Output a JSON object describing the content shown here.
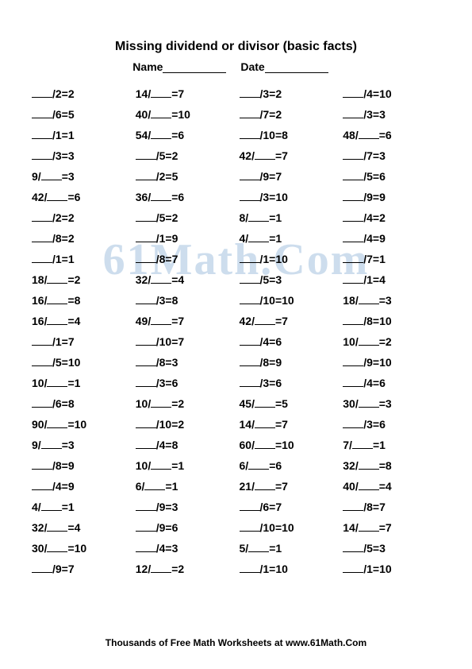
{
  "title": "Missing dividend or divisor (basic facts)",
  "name_label": "Name",
  "date_label": "Date",
  "watermark": "61Math.Com",
  "footer": "Thousands of Free Math Worksheets at www.61Math.Com",
  "problems": [
    {
      "a": "",
      "b": "2",
      "r": "2"
    },
    {
      "a": "14",
      "b": "",
      "r": "7"
    },
    {
      "a": "",
      "b": "3",
      "r": "2"
    },
    {
      "a": "",
      "b": "4",
      "r": "10"
    },
    {
      "a": "",
      "b": "6",
      "r": "5"
    },
    {
      "a": "40",
      "b": "",
      "r": "10"
    },
    {
      "a": "",
      "b": "7",
      "r": "2"
    },
    {
      "a": "",
      "b": "3",
      "r": "3"
    },
    {
      "a": "",
      "b": "1",
      "r": "1"
    },
    {
      "a": "54",
      "b": "",
      "r": "6"
    },
    {
      "a": "",
      "b": "10",
      "r": "8"
    },
    {
      "a": "48",
      "b": "",
      "r": "6"
    },
    {
      "a": "",
      "b": "3",
      "r": "3"
    },
    {
      "a": "",
      "b": "5",
      "r": "2"
    },
    {
      "a": "42",
      "b": "",
      "r": "7"
    },
    {
      "a": "",
      "b": "7",
      "r": "3"
    },
    {
      "a": "9",
      "b": "",
      "r": "3"
    },
    {
      "a": "",
      "b": "2",
      "r": "5"
    },
    {
      "a": "",
      "b": "9",
      "r": "7"
    },
    {
      "a": "",
      "b": "5",
      "r": "6"
    },
    {
      "a": "42",
      "b": "",
      "r": "6"
    },
    {
      "a": "36",
      "b": "",
      "r": "6"
    },
    {
      "a": "",
      "b": "3",
      "r": "10"
    },
    {
      "a": "",
      "b": "9",
      "r": "9"
    },
    {
      "a": "",
      "b": "2",
      "r": "2"
    },
    {
      "a": "",
      "b": "5",
      "r": "2"
    },
    {
      "a": "8",
      "b": "",
      "r": "1"
    },
    {
      "a": "",
      "b": "4",
      "r": "2"
    },
    {
      "a": "",
      "b": "8",
      "r": "2"
    },
    {
      "a": "",
      "b": "1",
      "r": "9"
    },
    {
      "a": "4",
      "b": "",
      "r": "1"
    },
    {
      "a": "",
      "b": "4",
      "r": "9"
    },
    {
      "a": "",
      "b": "1",
      "r": "1"
    },
    {
      "a": "",
      "b": "8",
      "r": "7"
    },
    {
      "a": "",
      "b": "1",
      "r": "10"
    },
    {
      "a": "",
      "b": "7",
      "r": "1"
    },
    {
      "a": "18",
      "b": "",
      "r": "2"
    },
    {
      "a": "32",
      "b": "",
      "r": "4"
    },
    {
      "a": "",
      "b": "5",
      "r": "3"
    },
    {
      "a": "",
      "b": "1",
      "r": "4"
    },
    {
      "a": "16",
      "b": "",
      "r": "8"
    },
    {
      "a": "",
      "b": "3",
      "r": "8"
    },
    {
      "a": "",
      "b": "10",
      "r": "10"
    },
    {
      "a": "18",
      "b": "",
      "r": "3"
    },
    {
      "a": "16",
      "b": "",
      "r": "4"
    },
    {
      "a": "49",
      "b": "",
      "r": "7"
    },
    {
      "a": "42",
      "b": "",
      "r": "7"
    },
    {
      "a": "",
      "b": "8",
      "r": "10"
    },
    {
      "a": "",
      "b": "1",
      "r": "7"
    },
    {
      "a": "",
      "b": "10",
      "r": "7"
    },
    {
      "a": "",
      "b": "4",
      "r": "6"
    },
    {
      "a": "10",
      "b": "",
      "r": "2"
    },
    {
      "a": "",
      "b": "5",
      "r": "10"
    },
    {
      "a": "",
      "b": "8",
      "r": "3"
    },
    {
      "a": "",
      "b": "8",
      "r": "9"
    },
    {
      "a": "",
      "b": "9",
      "r": "10"
    },
    {
      "a": "10",
      "b": "",
      "r": "1"
    },
    {
      "a": "",
      "b": "3",
      "r": "6"
    },
    {
      "a": "",
      "b": "3",
      "r": "6"
    },
    {
      "a": "",
      "b": "4",
      "r": "6"
    },
    {
      "a": "",
      "b": "6",
      "r": "8"
    },
    {
      "a": "10",
      "b": "",
      "r": "2"
    },
    {
      "a": "45",
      "b": "",
      "r": "5"
    },
    {
      "a": "30",
      "b": "",
      "r": "3"
    },
    {
      "a": "90",
      "b": "",
      "r": "10"
    },
    {
      "a": "",
      "b": "10",
      "r": "2"
    },
    {
      "a": "14",
      "b": "",
      "r": "7"
    },
    {
      "a": "",
      "b": "3",
      "r": "6"
    },
    {
      "a": "9",
      "b": "",
      "r": "3"
    },
    {
      "a": "",
      "b": "4",
      "r": "8"
    },
    {
      "a": "60",
      "b": "",
      "r": "10"
    },
    {
      "a": "7",
      "b": "",
      "r": "1"
    },
    {
      "a": "",
      "b": "8",
      "r": "9"
    },
    {
      "a": "10",
      "b": "",
      "r": "1"
    },
    {
      "a": "6",
      "b": "",
      "r": "6"
    },
    {
      "a": "32",
      "b": "",
      "r": "8"
    },
    {
      "a": "",
      "b": "4",
      "r": "9"
    },
    {
      "a": "6",
      "b": "",
      "r": "1"
    },
    {
      "a": "21",
      "b": "",
      "r": "7"
    },
    {
      "a": "40",
      "b": "",
      "r": "4"
    },
    {
      "a": "4",
      "b": "",
      "r": "1"
    },
    {
      "a": "",
      "b": "9",
      "r": "3"
    },
    {
      "a": "",
      "b": "6",
      "r": "7"
    },
    {
      "a": "",
      "b": "8",
      "r": "7"
    },
    {
      "a": "32",
      "b": "",
      "r": "4"
    },
    {
      "a": "",
      "b": "9",
      "r": "6"
    },
    {
      "a": "",
      "b": "10",
      "r": "10"
    },
    {
      "a": "14",
      "b": "",
      "r": "7"
    },
    {
      "a": "30",
      "b": "",
      "r": "10"
    },
    {
      "a": "",
      "b": "4",
      "r": "3"
    },
    {
      "a": "5",
      "b": "",
      "r": "1"
    },
    {
      "a": "",
      "b": "5",
      "r": "3"
    },
    {
      "a": "",
      "b": "9",
      "r": "7"
    },
    {
      "a": "12",
      "b": "",
      "r": "2"
    },
    {
      "a": "",
      "b": "1",
      "r": "10"
    },
    {
      "a": "",
      "b": "1",
      "r": "10"
    }
  ]
}
